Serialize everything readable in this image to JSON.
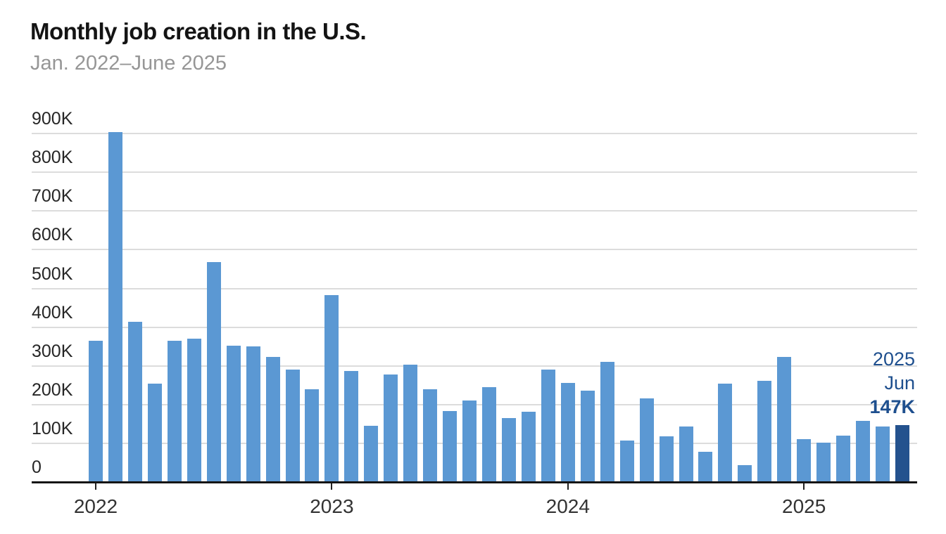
{
  "chart_data": {
    "type": "bar",
    "title": "Monthly job creation in the U.S.",
    "subtitle": "Jan. 2022–June 2025",
    "unit": "jobs added per month, in thousands (K)",
    "categories": [
      "Jan 2022",
      "Feb 2022",
      "Mar 2022",
      "Apr 2022",
      "May 2022",
      "Jun 2022",
      "Jul 2022",
      "Aug 2022",
      "Sep 2022",
      "Oct 2022",
      "Nov 2022",
      "Dec 2022",
      "Jan 2023",
      "Feb 2023",
      "Mar 2023",
      "Apr 2023",
      "May 2023",
      "Jun 2023",
      "Jul 2023",
      "Aug 2023",
      "Sep 2023",
      "Oct 2023",
      "Nov 2023",
      "Dec 2023",
      "Jan 2024",
      "Feb 2024",
      "Mar 2024",
      "Apr 2024",
      "May 2024",
      "Jun 2024",
      "Jul 2024",
      "Aug 2024",
      "Sep 2024",
      "Oct 2024",
      "Nov 2024",
      "Dec 2024",
      "Jan 2025",
      "Feb 2025",
      "Mar 2025",
      "Apr 2025",
      "May 2025",
      "Jun 2025"
    ],
    "values": [
      364,
      904,
      414,
      254,
      364,
      370,
      568,
      352,
      350,
      324,
      290,
      239,
      482,
      287,
      146,
      278,
      303,
      240,
      184,
      210,
      246,
      165,
      182,
      290,
      256,
      236,
      310,
      108,
      216,
      118,
      144,
      78,
      255,
      44,
      261,
      323,
      111,
      102,
      120,
      158,
      144,
      147
    ],
    "ylim": [
      0,
      900
    ],
    "grid": "horizontal",
    "legend": "none",
    "y_axis": {
      "ticks": [
        {
          "label": "900K",
          "value": 900
        },
        {
          "label": "800K",
          "value": 800
        },
        {
          "label": "700K",
          "value": 700
        },
        {
          "label": "600K",
          "value": 600
        },
        {
          "label": "500K",
          "value": 500
        },
        {
          "label": "400K",
          "value": 400
        },
        {
          "label": "300K",
          "value": 300
        },
        {
          "label": "200K",
          "value": 200
        },
        {
          "label": "100K",
          "value": 100
        },
        {
          "label": "0",
          "value": 0
        }
      ]
    },
    "x_axis": {
      "ticks": [
        {
          "label": "2022",
          "index": 0
        },
        {
          "label": "2023",
          "index": 12
        },
        {
          "label": "2024",
          "index": 24
        },
        {
          "label": "2025",
          "index": 36
        }
      ]
    },
    "highlight_index": 41,
    "annotation": {
      "year": "2025",
      "month": "Jun",
      "value_label": "147K"
    },
    "colors": {
      "bar": "#5B98D3",
      "highlight_bar": "#24528E",
      "gridline": "#DCDCDC",
      "axis": "#151515",
      "tick": "#222222",
      "annotation": "#1E4F8E"
    }
  }
}
